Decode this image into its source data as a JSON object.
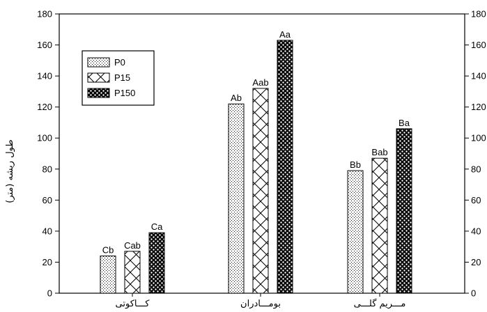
{
  "chart_data": {
    "type": "bar",
    "title": "",
    "xlabel": "",
    "ylabel": "طول ریشه (متر)",
    "ylim": [
      0,
      180
    ],
    "yticks": [
      0,
      20,
      40,
      60,
      80,
      100,
      120,
      140,
      160,
      180
    ],
    "secondary_y_axis": true,
    "grid": false,
    "legend_position": "top-left",
    "categories": [
      "کـــاکوتی",
      "بومـــادران",
      "مـــریم گلـــی"
    ],
    "series": [
      {
        "name": "P0",
        "pattern": "dots",
        "values": [
          24,
          122,
          79
        ],
        "labels": [
          "Cb",
          "Ab",
          "Bb"
        ]
      },
      {
        "name": "P15",
        "pattern": "crosshatch",
        "values": [
          27,
          132,
          87
        ],
        "labels": [
          "Cab",
          "Aab",
          "Bab"
        ]
      },
      {
        "name": "P150",
        "pattern": "checker",
        "values": [
          39,
          163,
          106
        ],
        "labels": [
          "Ca",
          "Aa",
          "Ba"
        ]
      }
    ]
  }
}
